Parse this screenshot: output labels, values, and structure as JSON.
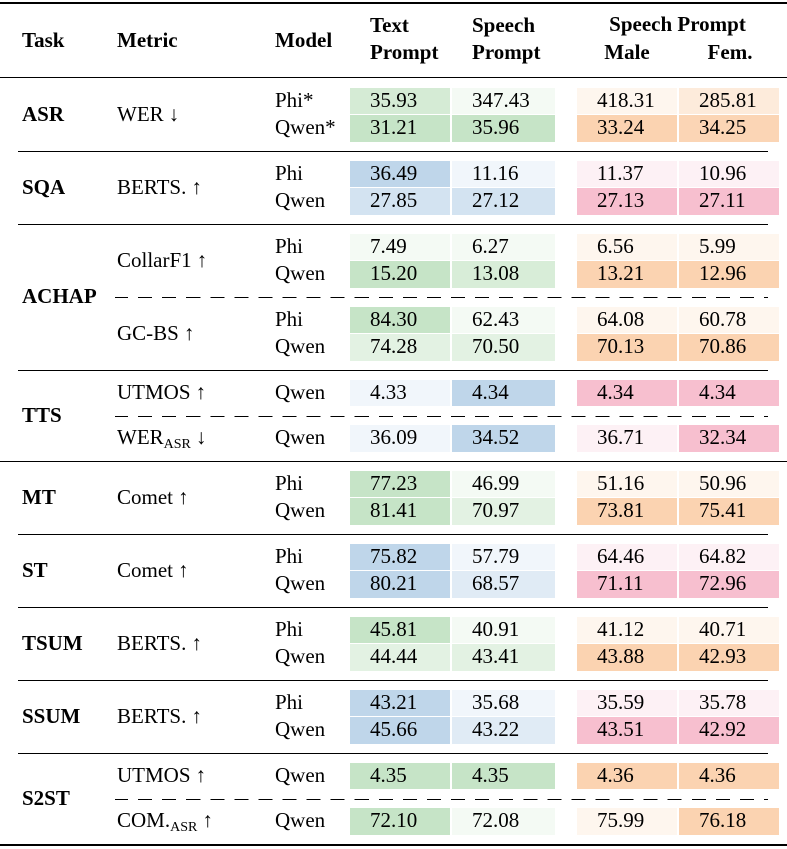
{
  "header": {
    "task": "Task",
    "metric": "Metric",
    "model": "Model",
    "text": "Text Prompt",
    "speech": "Speech Prompt",
    "voice": "Speech Prompt",
    "male": "Male",
    "female": "Fem."
  },
  "groups": [
    {
      "task": "ASR",
      "blocks": [
        {
          "metric": "WER",
          "arrow": "↓",
          "rows": [
            {
              "model": "Phi*",
              "values": [
                "35.93",
                "347.43",
                "418.31",
                "285.81"
              ],
              "colors": [
                "#d5ebd5",
                "#f4faf4",
                "#fef6ee",
                "#fdebdb"
              ]
            },
            {
              "model": "Qwen*",
              "values": [
                "31.21",
                "35.96",
                "33.24",
                "34.25"
              ],
              "colors": [
                "#c6e4c7",
                "#c6e4c7",
                "#fbd3b1",
                "#fbd5b5"
              ]
            }
          ]
        }
      ]
    },
    {
      "task": "SQA",
      "blocks": [
        {
          "metric": "BERTS.",
          "arrow": "↑",
          "rows": [
            {
              "model": "Phi",
              "values": [
                "36.49",
                "11.16",
                "11.37",
                "10.96"
              ],
              "colors": [
                "#bfd6ea",
                "#f1f6fb",
                "#fdf1f5",
                "#fdf1f5"
              ]
            },
            {
              "model": "Qwen",
              "values": [
                "27.85",
                "27.12",
                "27.13",
                "27.11"
              ],
              "colors": [
                "#d3e3f1",
                "#d3e3f1",
                "#f7bfcf",
                "#f7bfcf"
              ]
            }
          ]
        }
      ]
    },
    {
      "task": "ACHAP",
      "blocks": [
        {
          "metric": "CollarF1",
          "arrow": "↑",
          "rows": [
            {
              "model": "Phi",
              "values": [
                "7.49",
                "6.27",
                "6.56",
                "5.99"
              ],
              "colors": [
                "#f4faf4",
                "#f4faf4",
                "#fef6ee",
                "#fef6ee"
              ]
            },
            {
              "model": "Qwen",
              "values": [
                "15.20",
                "13.08",
                "13.21",
                "12.96"
              ],
              "colors": [
                "#c6e4c7",
                "#d8edd8",
                "#fbd3b1",
                "#fbd3b1"
              ]
            }
          ]
        },
        {
          "metric": "GC-BS",
          "arrow": "↑",
          "rows": [
            {
              "model": "Phi",
              "values": [
                "84.30",
                "62.43",
                "64.08",
                "60.78"
              ],
              "colors": [
                "#c6e4c7",
                "#f4faf4",
                "#fef6ee",
                "#fef6ee"
              ]
            },
            {
              "model": "Qwen",
              "values": [
                "74.28",
                "70.50",
                "70.13",
                "70.86"
              ],
              "colors": [
                "#e3f2e3",
                "#e3f2e3",
                "#fbd3b1",
                "#fbd3b1"
              ]
            }
          ]
        }
      ]
    },
    {
      "task": "TTS",
      "blocks": [
        {
          "metric": "UTMOS",
          "arrow": "↑",
          "rows": [
            {
              "model": "Qwen",
              "values": [
                "4.33",
                "4.34",
                "4.34",
                "4.34"
              ],
              "colors": [
                "#f1f6fb",
                "#bfd6ea",
                "#f7bfcf",
                "#f7bfcf"
              ]
            }
          ]
        },
        {
          "metric": "WER",
          "sub": "ASR",
          "arrow": "↓",
          "rows": [
            {
              "model": "Qwen",
              "values": [
                "36.09",
                "34.52",
                "36.71",
                "32.34"
              ],
              "colors": [
                "#f1f6fb",
                "#bfd6ea",
                "#fdf1f5",
                "#f7bfcf"
              ]
            }
          ]
        }
      ]
    },
    {
      "task": "MT",
      "blocks": [
        {
          "metric": "Comet",
          "arrow": "↑",
          "rows": [
            {
              "model": "Phi",
              "values": [
                "77.23",
                "46.99",
                "51.16",
                "50.96"
              ],
              "colors": [
                "#c6e4c7",
                "#f4faf4",
                "#fef6ee",
                "#fef6ee"
              ]
            },
            {
              "model": "Qwen",
              "values": [
                "81.41",
                "70.97",
                "73.81",
                "75.41"
              ],
              "colors": [
                "#c6e4c7",
                "#e3f2e3",
                "#fbd3b1",
                "#fbd3b1"
              ]
            }
          ]
        }
      ]
    },
    {
      "task": "ST",
      "blocks": [
        {
          "metric": "Comet",
          "arrow": "↑",
          "rows": [
            {
              "model": "Phi",
              "values": [
                "75.82",
                "57.79",
                "64.46",
                "64.82"
              ],
              "colors": [
                "#bfd6ea",
                "#f1f6fb",
                "#fdf1f5",
                "#fdf1f5"
              ]
            },
            {
              "model": "Qwen",
              "values": [
                "80.21",
                "68.57",
                "71.11",
                "72.96"
              ],
              "colors": [
                "#bfd6ea",
                "#e0ebf5",
                "#f7bfcf",
                "#f7bfcf"
              ]
            }
          ]
        }
      ]
    },
    {
      "task": "TSUM",
      "blocks": [
        {
          "metric": "BERTS.",
          "arrow": "↑",
          "rows": [
            {
              "model": "Phi",
              "values": [
                "45.81",
                "40.91",
                "41.12",
                "40.71"
              ],
              "colors": [
                "#c6e4c7",
                "#f4faf4",
                "#fef6ee",
                "#fef6ee"
              ]
            },
            {
              "model": "Qwen",
              "values": [
                "44.44",
                "43.41",
                "43.88",
                "42.93"
              ],
              "colors": [
                "#e3f2e3",
                "#e3f2e3",
                "#fbd3b1",
                "#fbd3b1"
              ]
            }
          ]
        }
      ]
    },
    {
      "task": "SSUM",
      "blocks": [
        {
          "metric": "BERTS.",
          "arrow": "↑",
          "rows": [
            {
              "model": "Phi",
              "values": [
                "43.21",
                "35.68",
                "35.59",
                "35.78"
              ],
              "colors": [
                "#bfd6ea",
                "#f1f6fb",
                "#fdf1f5",
                "#fdf1f5"
              ]
            },
            {
              "model": "Qwen",
              "values": [
                "45.66",
                "43.22",
                "43.51",
                "42.92"
              ],
              "colors": [
                "#bfd6ea",
                "#e0ebf5",
                "#f7bfcf",
                "#f7bfcf"
              ]
            }
          ]
        }
      ]
    },
    {
      "task": "S2ST",
      "blocks": [
        {
          "metric": "UTMOS",
          "arrow": "↑",
          "rows": [
            {
              "model": "Qwen",
              "values": [
                "4.35",
                "4.35",
                "4.36",
                "4.36"
              ],
              "colors": [
                "#c6e4c7",
                "#c6e4c7",
                "#fbd3b1",
                "#fbd3b1"
              ]
            }
          ]
        },
        {
          "metric": "COM.",
          "sub": "ASR",
          "arrow": "↑",
          "rows": [
            {
              "model": "Qwen",
              "values": [
                "72.10",
                "72.08",
                "75.99",
                "76.18"
              ],
              "colors": [
                "#c6e4c7",
                "#f4faf4",
                "#fef6ee",
                "#fbd3b1"
              ]
            }
          ]
        }
      ]
    }
  ]
}
